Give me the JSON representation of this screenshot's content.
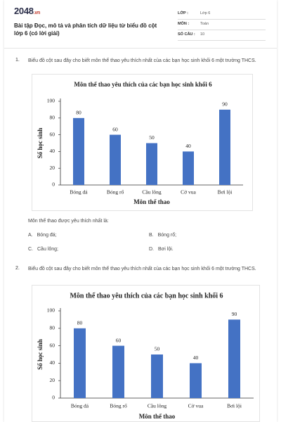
{
  "header": {
    "logo": {
      "main": "2048",
      "suffix": ".vn"
    },
    "title": "Bài tập Đọc, mô tả và phân tích dữ liệu từ biểu đồ cột lớp 6 (có lời giải)",
    "fields": [
      {
        "label": "LỚP :",
        "value": "Lớp 6"
      },
      {
        "label": "MÔN :",
        "value": "Toán"
      },
      {
        "label": "SỐ CÂU :",
        "value": "10"
      }
    ]
  },
  "questions": [
    {
      "number": "1.",
      "text": "Biểu đồ cột sau đây cho biết môn thể thao yêu thích nhất của các bạn học sinh khối 6 một trường THCS.",
      "chart": {
        "type": "bar",
        "title": "Môn thể thao yêu thích của các bạn học sinh khối 6",
        "x_label": "Môn thể thao",
        "y_label": "Số học sinh",
        "categories": [
          "Bóng đá",
          "Bóng rổ",
          "Cầu lông",
          "Cờ vua",
          "Bơi lội"
        ],
        "values": [
          80,
          60,
          50,
          40,
          90
        ],
        "color": "#4472c4",
        "ylim": [
          0,
          100
        ],
        "yticks": [
          0,
          20,
          40,
          60,
          80,
          100
        ]
      },
      "prompt": "Môn thể thao được yêu thích nhất là:",
      "options": [
        {
          "letter": "A.",
          "text": "Bóng đá;"
        },
        {
          "letter": "B.",
          "text": "Bóng rổ;"
        },
        {
          "letter": "C.",
          "text": "Cầu lông;"
        },
        {
          "letter": "D.",
          "text": "Bơi lội."
        }
      ]
    },
    {
      "number": "2.",
      "text": "Biểu đồ cột sau đây cho biết môn thể thao yêu thích nhất của các bạn học sinh khối 6 một trường THCS.",
      "chart": {
        "type": "bar",
        "title": "Môn thể thao yêu thích của các bạn học sinh khối 6",
        "x_label": "Môn thể thao",
        "y_label": "Số học sinh",
        "categories": [
          "Bóng đá",
          "Bóng rổ",
          "Cầu lông",
          "Cờ vua",
          "Bơi lội"
        ],
        "values": [
          80,
          60,
          50,
          40,
          90
        ],
        "color": "#4472c4",
        "ylim": [
          0,
          100
        ],
        "yticks": [
          0,
          20,
          40,
          60,
          80,
          100
        ]
      }
    }
  ]
}
